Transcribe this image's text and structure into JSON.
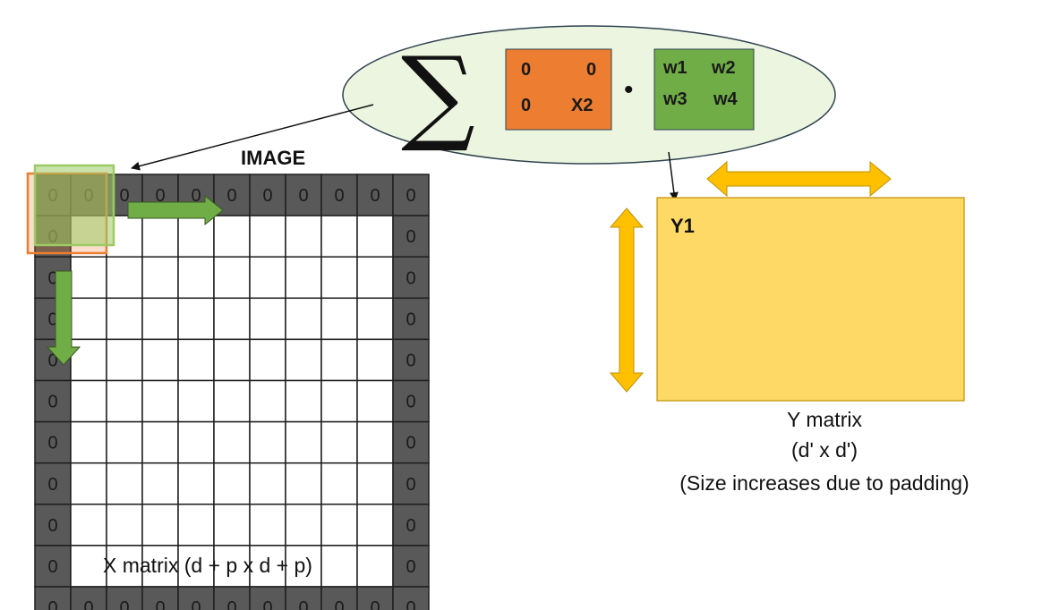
{
  "image_title": "IMAGE",
  "x_matrix": {
    "caption": "X matrix (d + p x d + p)",
    "size": 11,
    "pad_value": "0",
    "window_values": [
      "0",
      "0",
      "0",
      "X2"
    ]
  },
  "summation": {
    "symbol": "∑",
    "x_patch": [
      "0",
      "0",
      "0",
      "X2"
    ],
    "dot": "•",
    "w_patch": [
      "w1",
      "w2",
      "w3",
      "w4"
    ]
  },
  "y_matrix": {
    "cell_label": "Y1",
    "caption_line1": "Y matrix",
    "caption_line2": "(d' x d')",
    "caption_line3": "(Size increases due to padding)"
  },
  "colors": {
    "padding": "#595959",
    "grid_line": "#1f1f1f",
    "ellipse_fill": "#ebf5df",
    "ellipse_stroke": "#2f4250",
    "x_patch": "#ed7d31",
    "w_patch": "#70ad47",
    "y_fill": "#ffd966",
    "y_stroke": "#bf9000",
    "arrow_yellow": "#ffc000",
    "arrow_green": "#70ad47",
    "window_orange": "#ed7d31",
    "window_green": "#9ccb65"
  }
}
